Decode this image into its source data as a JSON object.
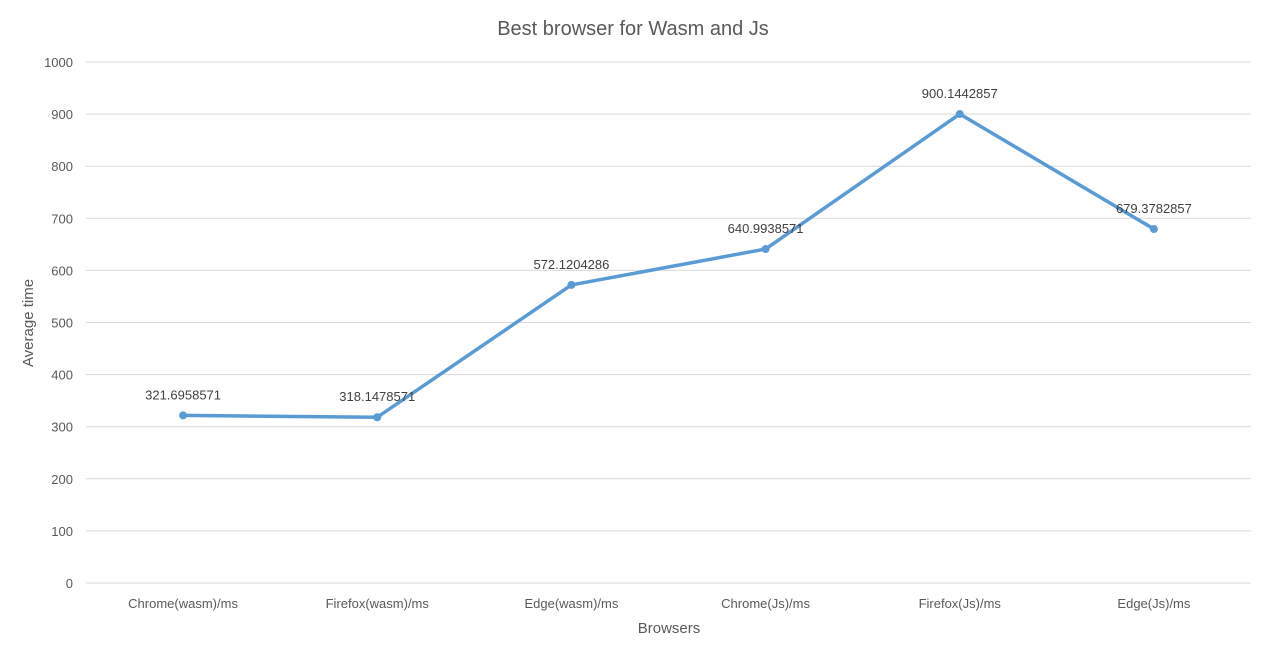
{
  "chart_data": {
    "type": "line",
    "title": "Best browser for Wasm and Js",
    "xlabel": "Browsers",
    "ylabel": "Average time",
    "categories": [
      "Chrome(wasm)/ms",
      "Firefox(wasm)/ms",
      "Edge(wasm)/ms",
      "Chrome(Js)/ms",
      "Firefox(Js)/ms",
      "Edge(Js)/ms"
    ],
    "series": [
      {
        "values": [
          321.6958571,
          318.1478571,
          572.1204286,
          640.9938571,
          900.1442857,
          679.3782857
        ],
        "labels": [
          "321.6958571",
          "318.1478571",
          "572.1204286",
          "640.9938571",
          "900.1442857",
          "679.3782857"
        ],
        "color": "#5b9bd5"
      }
    ],
    "ylim": [
      0,
      1000
    ],
    "yticks": [
      0,
      100,
      200,
      300,
      400,
      500,
      600,
      700,
      800,
      900,
      1000
    ],
    "grid": true,
    "legend": "none"
  }
}
